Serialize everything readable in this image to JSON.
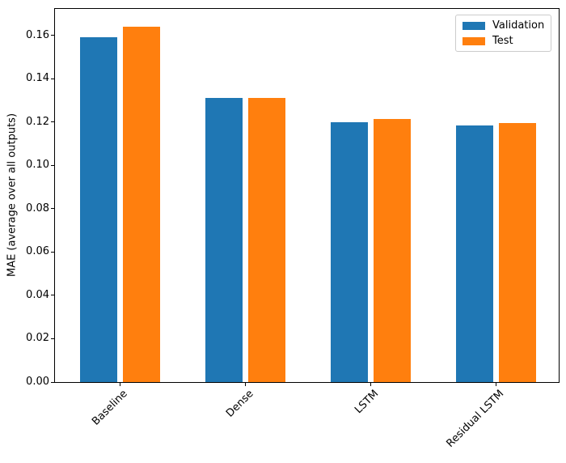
{
  "figure": {
    "background": "#ffffff"
  },
  "chart_data": {
    "type": "bar",
    "title": "",
    "xlabel": "",
    "ylabel": "MAE (average over all outputs)",
    "categories": [
      "Baseline",
      "Dense",
      "LSTM",
      "Residual LSTM"
    ],
    "series": [
      {
        "name": "Validation",
        "color": "#1f77b4",
        "values": [
          0.159,
          0.131,
          0.12,
          0.1185
        ]
      },
      {
        "name": "Test",
        "color": "#ff7f0e",
        "values": [
          0.164,
          0.131,
          0.1215,
          0.1195
        ]
      }
    ],
    "ylim": [
      0,
      0.1722
    ],
    "xlim": [
      -0.52,
      3.5
    ],
    "yticks": [
      0,
      0.02,
      0.04,
      0.06,
      0.08,
      0.1,
      0.12,
      0.14,
      0.16
    ],
    "ytick_labels": [
      "0.00",
      "0.02",
      "0.04",
      "0.06",
      "0.08",
      "0.10",
      "0.12",
      "0.14",
      "0.16"
    ],
    "bar_width": 0.3,
    "bar_offsets": [
      -0.17,
      0.17
    ],
    "x_tick_rotation": 45,
    "grid": false,
    "legend": {
      "position": "upper right",
      "entries": [
        "Validation",
        "Test"
      ]
    }
  }
}
